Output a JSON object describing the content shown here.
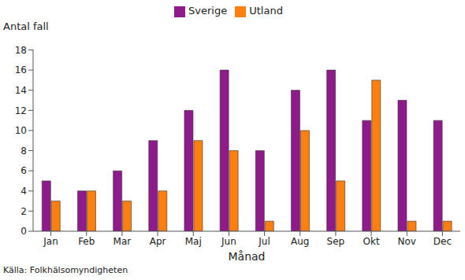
{
  "chart_data": {
    "type": "bar",
    "y_label": "Antal fall",
    "x_label": "Månad",
    "annotations": [
      "Källa: Folkhälsomyndigheten"
    ],
    "categories": [
      "Jan",
      "Feb",
      "Mar",
      "Apr",
      "Maj",
      "Jun",
      "Jul",
      "Aug",
      "Sep",
      "Okt",
      "Nov",
      "Dec"
    ],
    "series": [
      {
        "name": "Sverige",
        "color": "#8e1a8c",
        "values": [
          5,
          4,
          6,
          9,
          12,
          16,
          8,
          14,
          16,
          11,
          13,
          11
        ]
      },
      {
        "name": "Utland",
        "color": "#ff7f0e",
        "values": [
          3,
          4,
          3,
          4,
          9,
          8,
          1,
          10,
          5,
          15,
          1,
          1
        ]
      }
    ],
    "ylim": [
      0,
      18
    ],
    "yticks": [
      0,
      2,
      4,
      6,
      8,
      10,
      12,
      14,
      16,
      18
    ],
    "grid": false,
    "legend": "top"
  }
}
